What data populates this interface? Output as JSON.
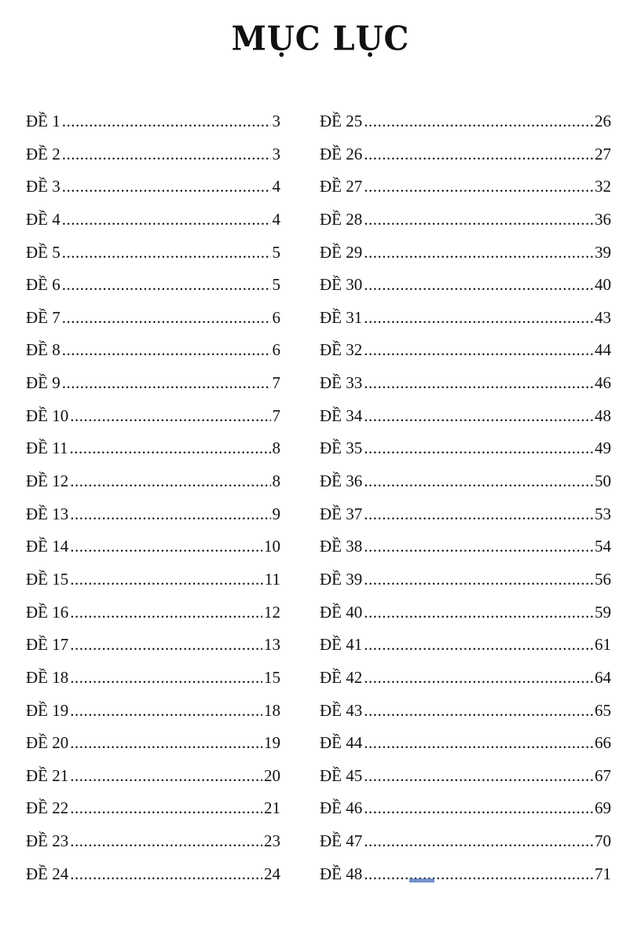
{
  "title": "MỤC LỤC",
  "left_column": [
    {
      "label": "ĐỀ 1",
      "page": "3"
    },
    {
      "label": "ĐỀ 2",
      "page": "3"
    },
    {
      "label": "ĐỀ 3",
      "page": "4"
    },
    {
      "label": "ĐỀ 4",
      "page": "4"
    },
    {
      "label": "ĐỀ 5",
      "page": "5"
    },
    {
      "label": "ĐỀ 6",
      "page": "5"
    },
    {
      "label": "ĐỀ 7",
      "page": "6"
    },
    {
      "label": "ĐỀ 8",
      "page": "6"
    },
    {
      "label": "ĐỀ 9",
      "page": "7"
    },
    {
      "label": "ĐỀ 10",
      "page": "7"
    },
    {
      "label": "ĐỀ 11",
      "page": "8"
    },
    {
      "label": "ĐỀ 12",
      "page": "8"
    },
    {
      "label": "ĐỀ 13",
      "page": "9"
    },
    {
      "label": "ĐỀ 14",
      "page": "10"
    },
    {
      "label": "ĐỀ 15",
      "page": "11"
    },
    {
      "label": "ĐỀ 16",
      "page": "12"
    },
    {
      "label": "ĐỀ 17",
      "page": "13"
    },
    {
      "label": "ĐỀ 18",
      "page": "15"
    },
    {
      "label": "ĐỀ 19",
      "page": "18"
    },
    {
      "label": "ĐỀ 20",
      "page": "19"
    },
    {
      "label": "ĐỀ 21",
      "page": "20"
    },
    {
      "label": "ĐỀ 22",
      "page": "21"
    },
    {
      "label": "ĐỀ 23",
      "page": "23"
    },
    {
      "label": "ĐỀ 24",
      "page": "24"
    }
  ],
  "right_column": [
    {
      "label": "ĐỀ 25",
      "page": "26"
    },
    {
      "label": "ĐỀ 26",
      "page": "27"
    },
    {
      "label": "ĐỀ 27",
      "page": "32"
    },
    {
      "label": "ĐỀ 28",
      "page": "36"
    },
    {
      "label": "ĐỀ 29",
      "page": "39"
    },
    {
      "label": "ĐỀ 30",
      "page": "40"
    },
    {
      "label": "ĐỀ 31",
      "page": "43"
    },
    {
      "label": "ĐỀ 32",
      "page": "44"
    },
    {
      "label": "ĐỀ 33",
      "page": "46"
    },
    {
      "label": "ĐỀ 34",
      "page": "48"
    },
    {
      "label": "ĐỀ 35",
      "page": "49"
    },
    {
      "label": "ĐỀ 36",
      "page": "50"
    },
    {
      "label": "ĐỀ 37",
      "page": "53"
    },
    {
      "label": "ĐỀ 38",
      "page": "54"
    },
    {
      "label": "ĐỀ 39",
      "page": "56"
    },
    {
      "label": "ĐỀ 40",
      "page": "59"
    },
    {
      "label": "ĐỀ 41",
      "page": "61"
    },
    {
      "label": "ĐỀ 42",
      "page": "64"
    },
    {
      "label": "ĐỀ 43",
      "page": "65"
    },
    {
      "label": "ĐỀ 44",
      "page": "66"
    },
    {
      "label": "ĐỀ 45",
      "page": "67"
    },
    {
      "label": "ĐỀ 46",
      "page": "69"
    },
    {
      "label": "ĐỀ 47",
      "page": "70"
    },
    {
      "label": "ĐỀ 48",
      "page": "71"
    }
  ],
  "colors": {
    "text": "#111111",
    "selection_highlight": "#5b7fc6"
  }
}
